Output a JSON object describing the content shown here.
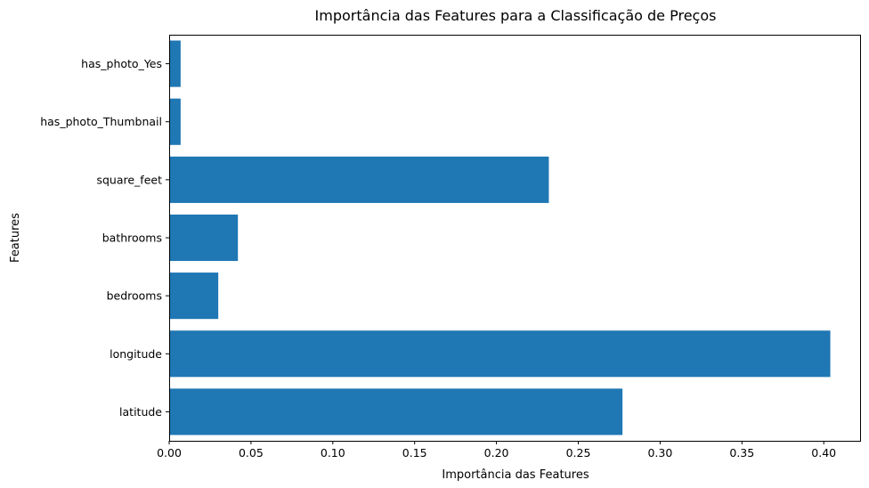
{
  "chart_data": {
    "type": "bar",
    "orientation": "horizontal",
    "title": "Importância das Features para a Classificação de Preços",
    "xlabel": "Importância das Features",
    "ylabel": "Features",
    "categories": [
      "latitude",
      "longitude",
      "bedrooms",
      "bathrooms",
      "square_feet",
      "has_photo_Thumbnail",
      "has_photo_Yes"
    ],
    "values": [
      0.277,
      0.404,
      0.03,
      0.042,
      0.232,
      0.007,
      0.007
    ],
    "xlim": [
      0,
      0.4222
    ],
    "xticks": [
      0.0,
      0.05,
      0.1,
      0.15,
      0.2,
      0.25,
      0.3,
      0.35,
      0.4
    ],
    "xtick_labels": [
      "0.00",
      "0.05",
      "0.10",
      "0.15",
      "0.20",
      "0.25",
      "0.30",
      "0.35",
      "0.40"
    ],
    "bar_color": "#1f77b4",
    "grid": false,
    "legend": "none"
  }
}
